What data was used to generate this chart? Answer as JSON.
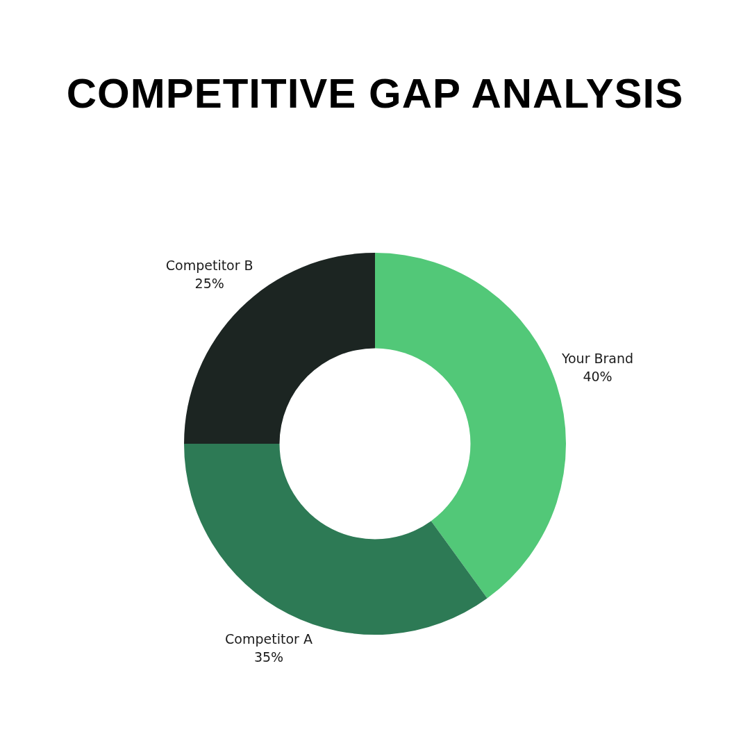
{
  "chart_data": {
    "type": "donut",
    "title": "COMPETITIVE GAP ANALYSIS",
    "categories": [
      "Your Brand",
      "Competitor A",
      "Competitor B"
    ],
    "values": [
      40,
      35,
      25
    ],
    "colors": [
      "#52c878",
      "#2d7a55",
      "#1c2522"
    ],
    "value_labels": [
      "40%",
      "35%",
      "25%"
    ]
  }
}
